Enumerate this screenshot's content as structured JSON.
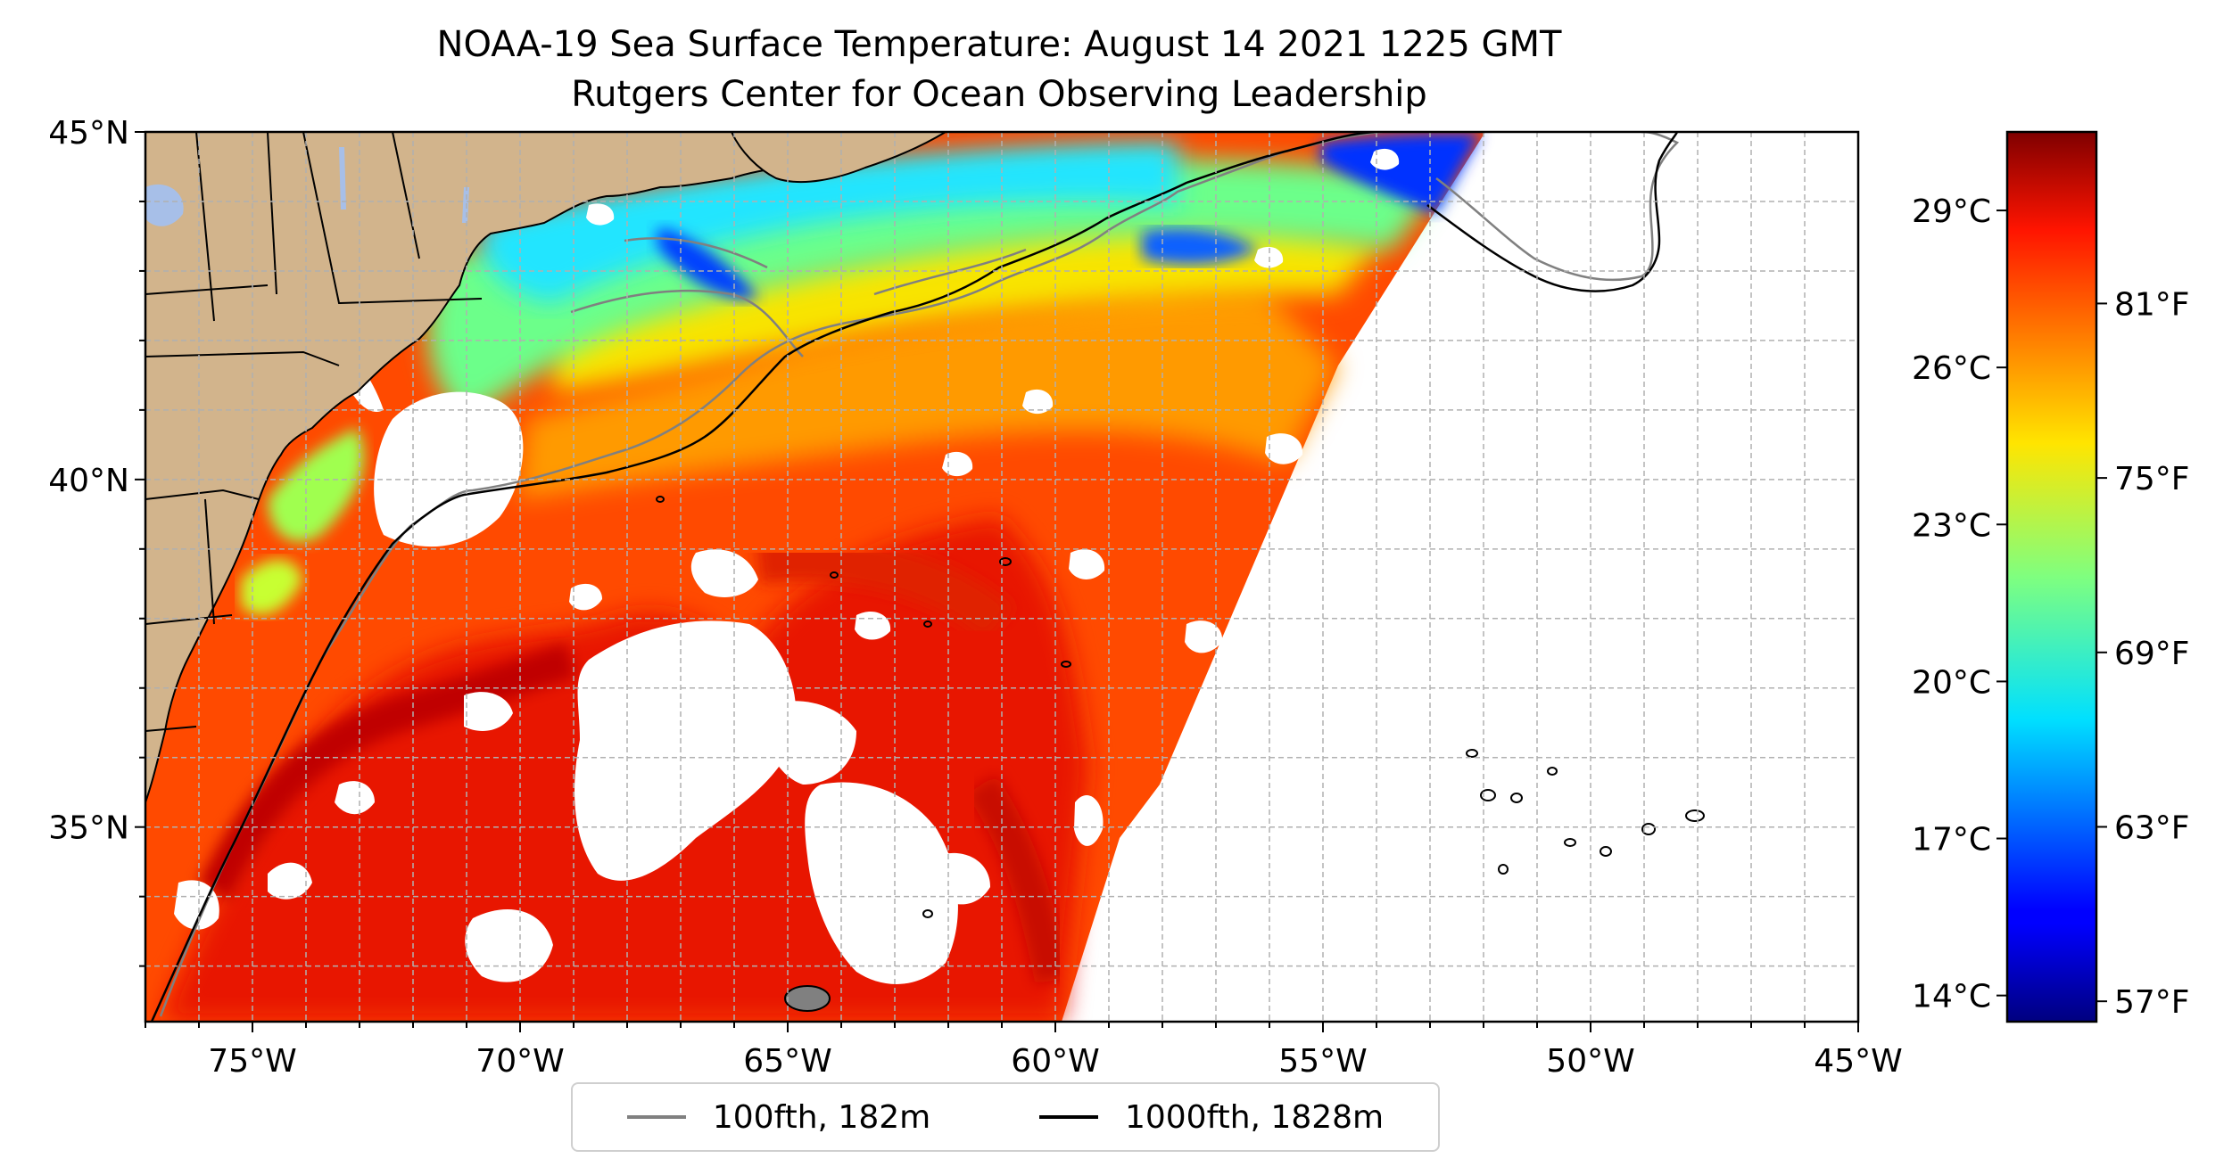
{
  "title": {
    "line1": "NOAA-19 Sea Surface Temperature: August 14 2021 1225 GMT",
    "line2": "Rutgers Center for Ocean Observing Leadership"
  },
  "map": {
    "lon_range": [
      -77,
      -45
    ],
    "lat_range": [
      32.2,
      45
    ],
    "x_ticks": [
      "75°W",
      "70°W",
      "65°W",
      "60°W",
      "55°W",
      "50°W",
      "45°W"
    ],
    "x_tick_values": [
      -75,
      -70,
      -65,
      -60,
      -55,
      -50,
      -45
    ],
    "y_ticks": [
      "35°N",
      "40°N",
      "45°N"
    ],
    "y_tick_values": [
      35,
      40,
      45
    ],
    "land_color": "#d2b48c",
    "grid": true
  },
  "colorbar": {
    "colormap": "jet",
    "celsius_labels": [
      "29°C",
      "26°C",
      "23°C",
      "20°C",
      "17°C",
      "14°C"
    ],
    "celsius_values": [
      29,
      26,
      23,
      20,
      17,
      14
    ],
    "fahrenheit_labels": [
      "81°F",
      "75°F",
      "69°F",
      "63°F",
      "57°F"
    ],
    "fahrenheit_values": [
      81,
      75,
      69,
      63,
      57
    ],
    "range_c": [
      13.5,
      30.5
    ]
  },
  "legend": {
    "items": [
      {
        "label": "100fth, 182m",
        "color": "#808080"
      },
      {
        "label": "1000fth, 1828m",
        "color": "#000000"
      }
    ]
  }
}
